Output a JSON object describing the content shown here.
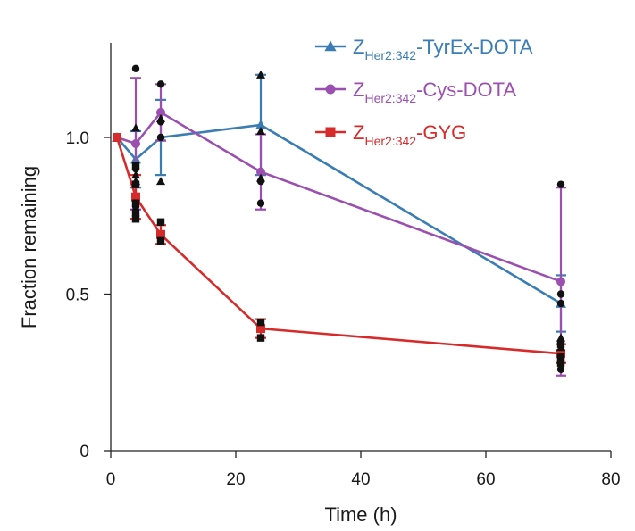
{
  "chart_data": {
    "type": "line",
    "title": "",
    "xlabel": "Time (h)",
    "ylabel": "Fraction remaining",
    "xlim": [
      0,
      80
    ],
    "ylim": [
      0,
      1.3
    ],
    "xticks": [
      0,
      20,
      40,
      60,
      80
    ],
    "xtick_labels": [
      "0",
      "20",
      "40",
      "60",
      "80"
    ],
    "yticks": [
      0,
      0.5,
      1.0
    ],
    "ytick_labels": [
      "0",
      "0.5",
      "1.0"
    ],
    "grid": false,
    "legend_position": "top-right",
    "series": [
      {
        "name": "Z_Her2:342-TyrEx-DOTA",
        "legend_parts": [
          "Z",
          "Her2:342",
          "-TyrEx-DOTA"
        ],
        "color": "#3a7db5",
        "marker": "triangle",
        "x": [
          1,
          4,
          8,
          24,
          72
        ],
        "y": [
          1.0,
          0.93,
          1.0,
          1.04,
          0.47
        ],
        "err": [
          0,
          0.09,
          0.12,
          0.16,
          0.09
        ],
        "replicates_marker": "triangle",
        "replicates": [
          {
            "x": 4,
            "y": [
              1.03,
              0.88,
              0.86
            ]
          },
          {
            "x": 8,
            "y": [
              1.06,
              0.86
            ]
          },
          {
            "x": 24,
            "y": [
              1.2,
              1.02,
              0.87
            ]
          },
          {
            "x": 72,
            "y": [
              0.36,
              0.33,
              0.29
            ]
          }
        ]
      },
      {
        "name": "Z_Her2:342-Cys-DOTA",
        "legend_parts": [
          "Z",
          "Her2:342",
          "-Cys-DOTA"
        ],
        "color": "#9b4fb0",
        "marker": "circle",
        "x": [
          1,
          4,
          8,
          24,
          72
        ],
        "y": [
          1.0,
          0.98,
          1.08,
          0.89,
          0.54
        ],
        "err": [
          0,
          0.21,
          0.09,
          0.12,
          0.3
        ],
        "replicates_marker": "circle",
        "replicates": [
          {
            "x": 4,
            "y": [
              1.22,
              0.9,
              0.78
            ]
          },
          {
            "x": 8,
            "y": [
              1.17,
              1.05,
              1.0
            ]
          },
          {
            "x": 24,
            "y": [
              0.86,
              0.79
            ]
          },
          {
            "x": 72,
            "y": [
              0.85,
              0.5,
              0.47,
              0.26
            ]
          }
        ]
      },
      {
        "name": "Z_Her2:342-GYG",
        "legend_parts": [
          "Z",
          "Her2:342",
          "-GYG"
        ],
        "color": "#d72b2b",
        "marker": "square",
        "x": [
          1,
          4,
          8,
          24,
          72
        ],
        "y": [
          1.0,
          0.81,
          0.69,
          0.39,
          0.31
        ],
        "err": [
          0,
          0.07,
          0.03,
          0.03,
          0.03
        ],
        "replicates_marker": "square",
        "replicates": [
          {
            "x": 4,
            "y": [
              0.91,
              0.85,
              0.79,
              0.76,
              0.74
            ]
          },
          {
            "x": 8,
            "y": [
              0.73,
              0.67
            ]
          },
          {
            "x": 24,
            "y": [
              0.41,
              0.36
            ]
          },
          {
            "x": 72,
            "y": [
              0.34,
              0.3,
              0.28
            ]
          }
        ]
      }
    ]
  }
}
